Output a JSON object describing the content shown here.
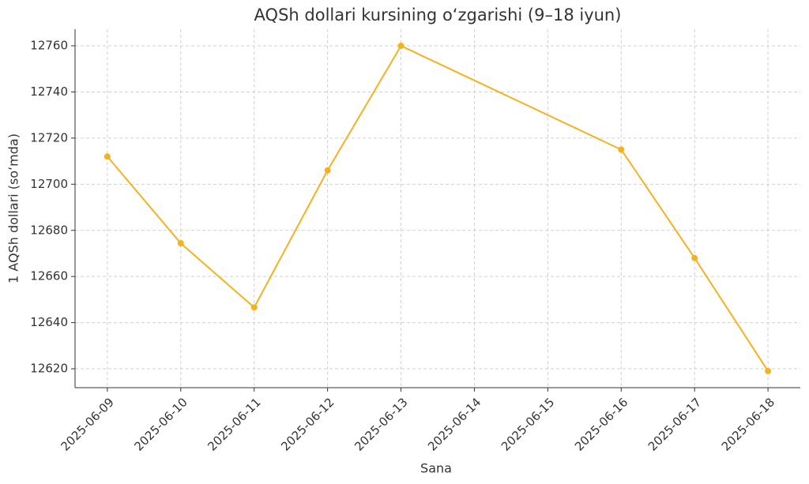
{
  "chart_data": {
    "type": "line",
    "title": "AQSh dollari kursining oʻzgarishi (9–18 iyun)",
    "x_label": "Sana",
    "y_label": "1 AQSh dollari (soʻmda)",
    "x": [
      "2025-06-09",
      "2025-06-10",
      "2025-06-11",
      "2025-06-12",
      "2025-06-13",
      "2025-06-16",
      "2025-06-17",
      "2025-06-18"
    ],
    "series": [
      {
        "name": "AQSh dollari",
        "color": "#f5b120",
        "values": [
          12712,
          12674.4,
          12646.6,
          12706,
          12760,
          12715,
          12668,
          12619
        ]
      }
    ],
    "xticks": [
      "2025-06-09",
      "2025-06-10",
      "2025-06-11",
      "2025-06-12",
      "2025-06-13",
      "2025-06-14",
      "2025-06-15",
      "2025-06-16",
      "2025-06-17",
      "2025-06-18"
    ],
    "ylim": [
      12611.8,
      12767.2
    ],
    "yticks": [
      12620,
      12640,
      12660,
      12680,
      12700,
      12720,
      12740,
      12760
    ],
    "grid": true
  }
}
